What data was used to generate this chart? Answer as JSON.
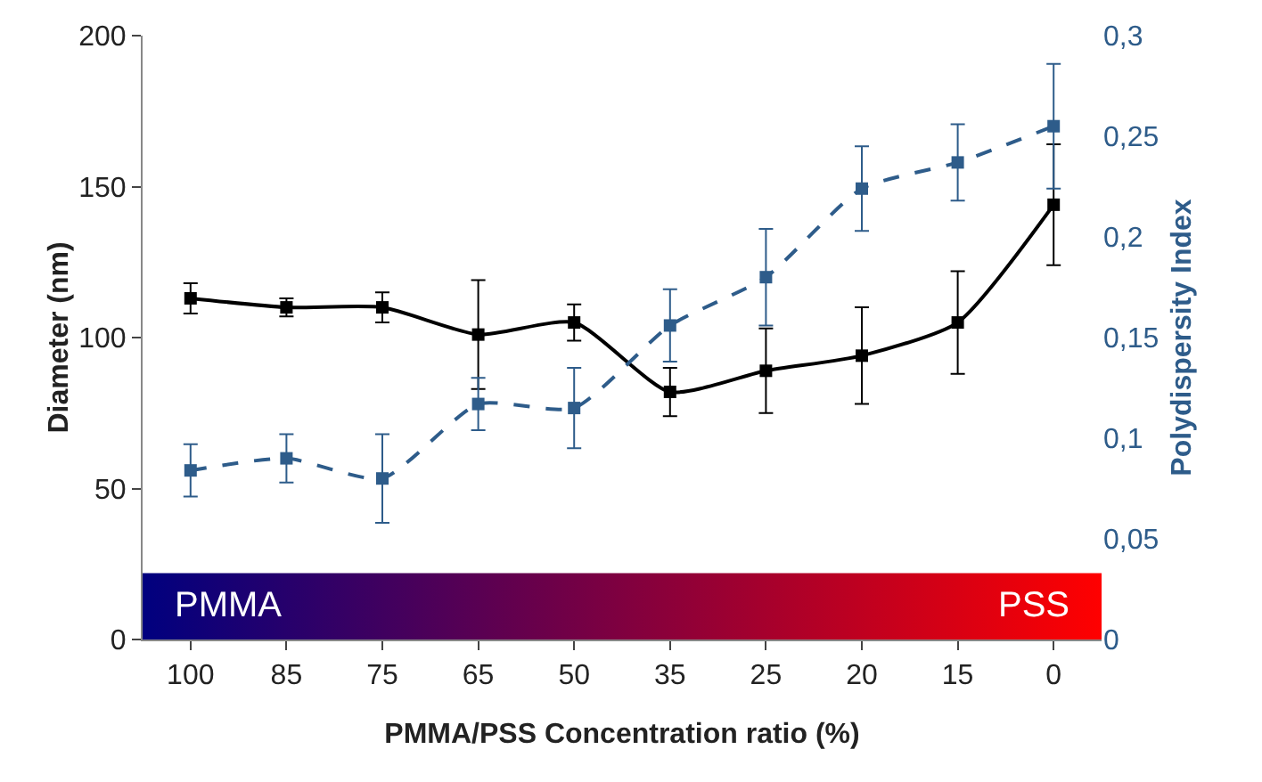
{
  "chart_data": {
    "type": "line",
    "xlabel": "PMMA/PSS Concentration ratio (%)",
    "ylabel": "Diameter (nm)",
    "y2label": "Polydispersity Index",
    "categories": [
      "100",
      "85",
      "75",
      "65",
      "50",
      "35",
      "25",
      "20",
      "15",
      "0"
    ],
    "series": [
      {
        "color": "#000000",
        "line_style": "solid",
        "values": [
          113,
          110,
          110,
          101,
          105,
          82,
          89,
          94,
          105,
          144
        ],
        "errors": [
          5,
          3,
          5,
          18,
          6,
          8,
          14,
          16,
          17,
          20
        ]
      },
      {
        "color": "#2e5c8a",
        "line_style": "dashed",
        "axis": "y2",
        "values": [
          0.084,
          0.09,
          0.08,
          0.117,
          0.115,
          0.156,
          0.18,
          0.224,
          0.237,
          0.255
        ],
        "errors": [
          0.013,
          0.012,
          0.022,
          0.013,
          0.02,
          0.018,
          0.024,
          0.021,
          0.019,
          0.031
        ]
      }
    ],
    "marker": "square",
    "ylim": [
      0,
      200
    ],
    "yticks": [
      0,
      50,
      100,
      150,
      200
    ],
    "y2lim": [
      0,
      0.3
    ],
    "y2ticks": [
      {
        "value": 0,
        "label": "0"
      },
      {
        "value": 0.05,
        "label": "0,05"
      },
      {
        "value": 0.1,
        "label": "0,1"
      },
      {
        "value": 0.15,
        "label": "0,15"
      },
      {
        "value": 0.2,
        "label": "0,2"
      },
      {
        "value": 0.25,
        "label": "0,25"
      },
      {
        "value": 0.3,
        "label": "0,3"
      }
    ],
    "bands": [
      {
        "axis": "y",
        "from": 0,
        "to": 22,
        "color": "#00007f"
      }
    ],
    "annotations": [
      "PMMA",
      "PSS"
    ],
    "grid": false
  }
}
